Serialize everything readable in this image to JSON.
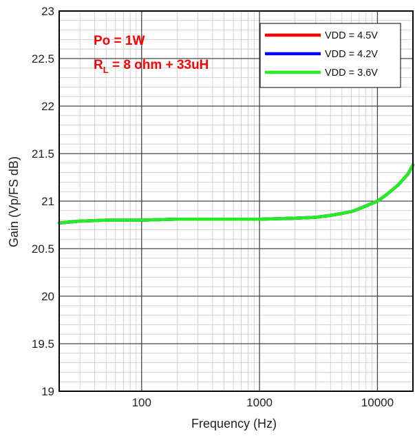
{
  "chart_data": {
    "type": "line",
    "xlabel": "Frequency (Hz)",
    "ylabel": "Gain (Vp/FS dB)",
    "xscale": "log",
    "xlim": [
      20,
      20000
    ],
    "ylim": [
      19,
      23
    ],
    "grid": true,
    "legend_position": "top-right",
    "x_tick_labels": [
      "100",
      "1000",
      "10000"
    ],
    "x_tick_values": [
      100,
      1000,
      10000
    ],
    "y_tick_labels": [
      "19",
      "19.5",
      "20",
      "20.5",
      "21",
      "21.5",
      "22",
      "22.5",
      "23"
    ],
    "y_tick_values": [
      19,
      19.5,
      20,
      20.5,
      21,
      21.5,
      22,
      22.5,
      23
    ],
    "annotations": {
      "po": "Po = 1W",
      "rl_main": "R",
      "rl_sub": "L",
      "rl_rest": " = 8 ohm + 33uH",
      "color": "#ff0000"
    },
    "x": [
      20,
      30,
      50,
      100,
      200,
      500,
      1000,
      2000,
      3000,
      4000,
      5000,
      6000,
      7000,
      8000,
      10000,
      12000,
      15000,
      18000,
      20000
    ],
    "series": [
      {
        "name": "VDD = 4.5V",
        "color": "#ff0000",
        "values": [
          20.77,
          20.79,
          20.8,
          20.8,
          20.81,
          20.81,
          20.81,
          20.82,
          20.83,
          20.85,
          20.87,
          20.89,
          20.92,
          20.95,
          21.0,
          21.07,
          21.17,
          21.28,
          21.38
        ]
      },
      {
        "name": "VDD = 4.2V",
        "color": "#0000ff",
        "values": [
          20.77,
          20.79,
          20.8,
          20.8,
          20.81,
          20.81,
          20.81,
          20.82,
          20.83,
          20.85,
          20.87,
          20.89,
          20.92,
          20.95,
          21.0,
          21.07,
          21.17,
          21.28,
          21.38
        ]
      },
      {
        "name": "VDD = 3.6V",
        "color": "#22ee22",
        "values": [
          20.77,
          20.79,
          20.8,
          20.8,
          20.81,
          20.81,
          20.81,
          20.82,
          20.83,
          20.85,
          20.87,
          20.89,
          20.92,
          20.95,
          21.0,
          21.07,
          21.17,
          21.28,
          21.38
        ]
      }
    ]
  }
}
